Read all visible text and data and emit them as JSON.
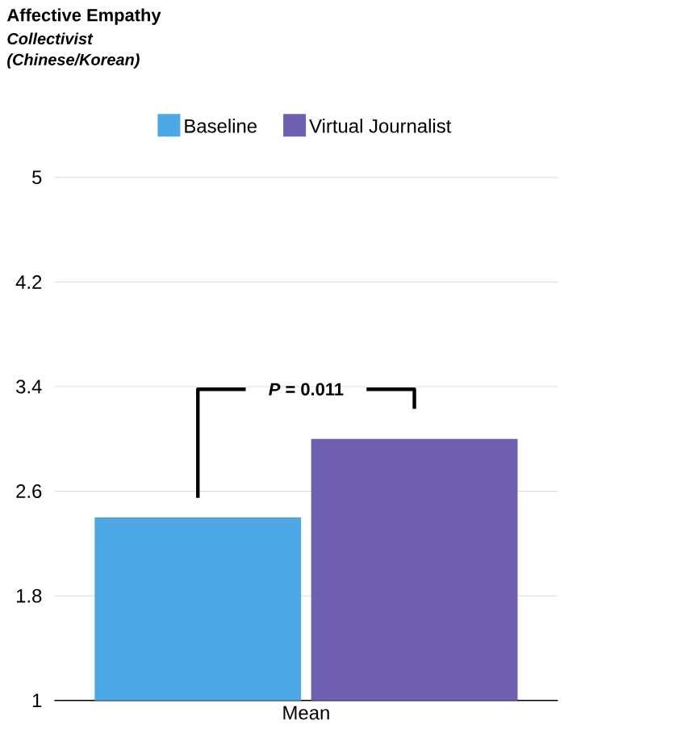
{
  "chart_data": {
    "type": "bar",
    "title": "Affective Empathy",
    "subtitle": "Collectivist (Chinese/Korean)",
    "categories": [
      "Mean"
    ],
    "series": [
      {
        "name": "Baseline",
        "color": "#4ea8e6",
        "values": [
          2.4
        ]
      },
      {
        "name": "Virtual Journalist",
        "color": "#6f5fb0",
        "values": [
          3.0
        ]
      }
    ],
    "ylim": [
      1,
      5
    ],
    "yticks": [
      1,
      1.8,
      2.6,
      3.4,
      4.2,
      5
    ],
    "grid": "y",
    "legend": "top",
    "annotations": [
      "*P* = 0.011"
    ]
  }
}
